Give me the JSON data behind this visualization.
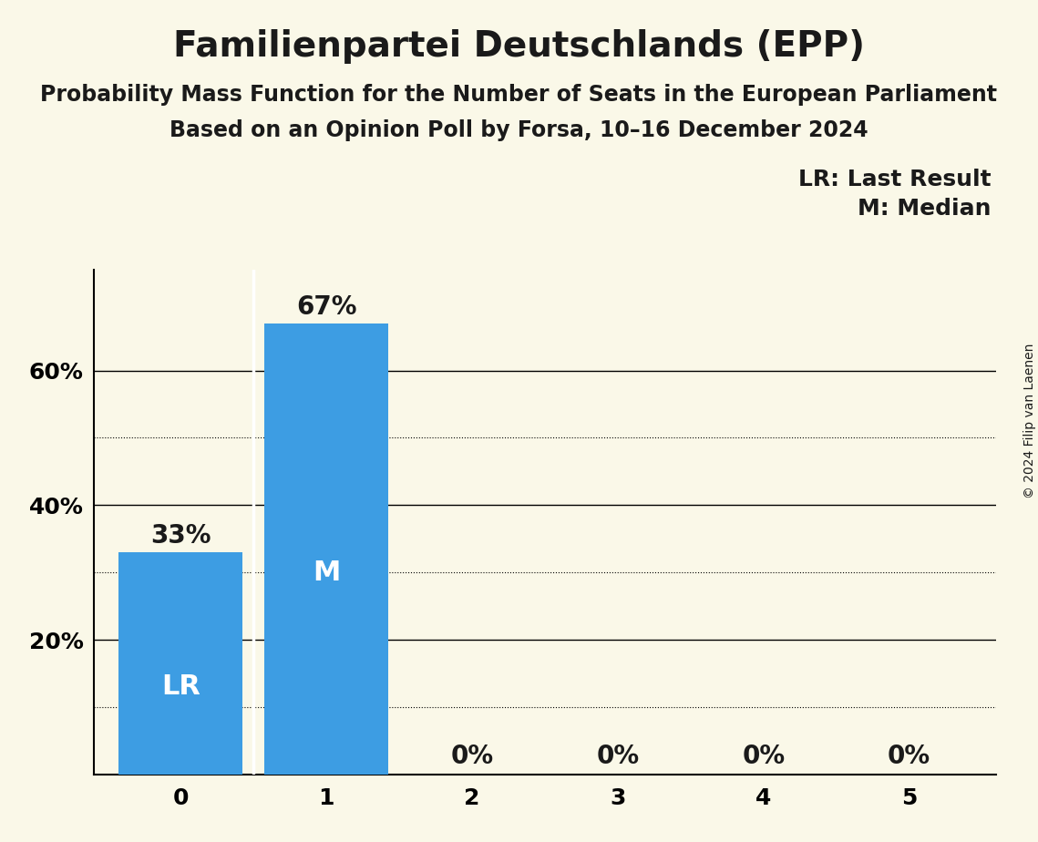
{
  "title": "Familienpartei Deutschlands (EPP)",
  "subtitle1": "Probability Mass Function for the Number of Seats in the European Parliament",
  "subtitle2": "Based on an Opinion Poll by Forsa, 10–16 December 2024",
  "copyright": "© 2024 Filip van Laenen",
  "categories": [
    0,
    1,
    2,
    3,
    4,
    5
  ],
  "values": [
    0.33,
    0.67,
    0.0,
    0.0,
    0.0,
    0.0
  ],
  "bar_color": "#3d9de3",
  "bar_width": 0.85,
  "last_result_seat": 0,
  "median_seat": 1,
  "label_LR": "LR",
  "label_M": "M",
  "legend_lr": "LR: Last Result",
  "legend_m": "M: Median",
  "ylim": [
    0,
    0.75
  ],
  "background_color": "#faf8e8",
  "bar_label_color_inside": "#ffffff",
  "bar_label_color_outside": "#1a1a1a",
  "separator_color": "#ffffff",
  "title_fontsize": 28,
  "subtitle_fontsize": 17,
  "tick_fontsize": 18,
  "bar_label_fontsize": 20,
  "label_inside_fontsize": 22,
  "legend_fontsize": 18,
  "copyright_fontsize": 10
}
